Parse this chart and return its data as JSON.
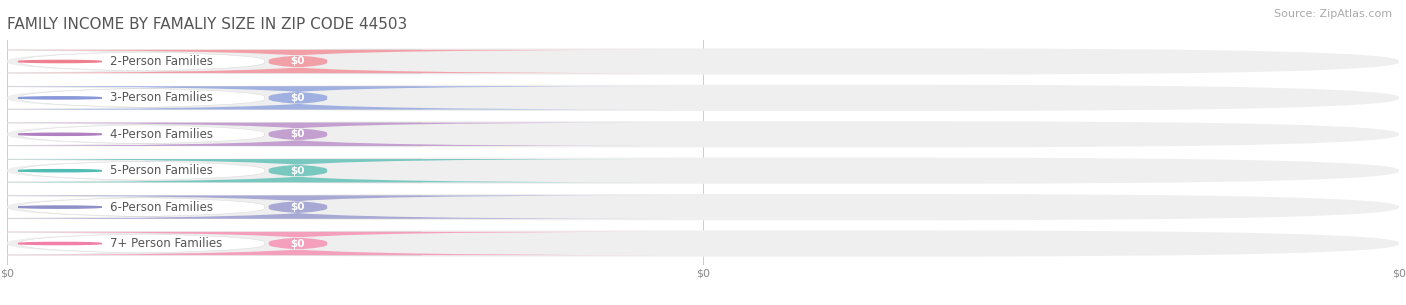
{
  "title": "FAMILY INCOME BY FAMALIY SIZE IN ZIP CODE 44503",
  "source": "Source: ZipAtlas.com",
  "categories": [
    "2-Person Families",
    "3-Person Families",
    "4-Person Families",
    "5-Person Families",
    "6-Person Families",
    "7+ Person Families"
  ],
  "values": [
    0,
    0,
    0,
    0,
    0,
    0
  ],
  "bar_colors": [
    "#f2a0a8",
    "#a0b0e0",
    "#c4a0d0",
    "#78c8c0",
    "#a8a8d4",
    "#f4a0bc"
  ],
  "circle_colors": [
    "#ee8090",
    "#8898d8",
    "#b080c0",
    "#50bcb4",
    "#9090c8",
    "#f080a8"
  ],
  "value_labels": [
    "$0",
    "$0",
    "$0",
    "$0",
    "$0",
    "$0"
  ],
  "x_tick_labels": [
    "$0",
    "$0",
    "$0"
  ],
  "x_tick_positions": [
    0.0,
    0.5,
    1.0
  ],
  "background_color": "#ffffff",
  "row_bg_color": "#efefef",
  "title_color": "#555555",
  "label_color": "#555555",
  "value_color": "#ffffff",
  "source_color": "#aaaaaa",
  "title_fontsize": 11,
  "label_fontsize": 8.5,
  "value_fontsize": 7.5,
  "source_fontsize": 8,
  "tick_fontsize": 8,
  "xlim": [
    0,
    1
  ],
  "bar_height": 0.72
}
